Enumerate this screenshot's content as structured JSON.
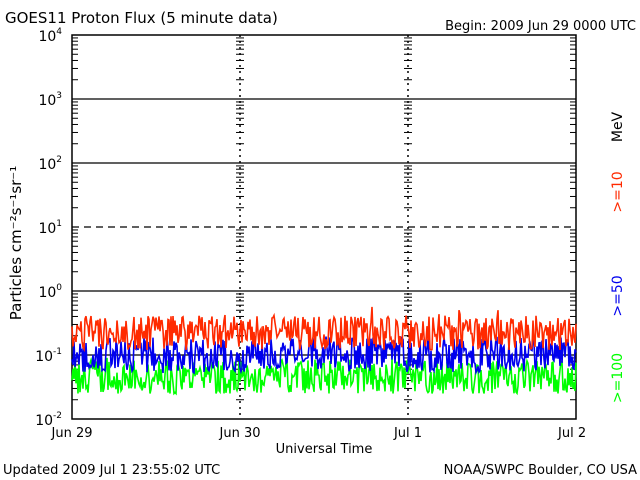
{
  "header": {
    "title": "GOES11 Proton Flux (5 minute data)",
    "begin": "Begin: 2009 Jun 29 0000 UTC"
  },
  "footer": {
    "updated": "Updated 2009 Jul  1 23:55:02 UTC",
    "credit": "NOAA/SWPC Boulder, CO USA"
  },
  "chart_data": {
    "type": "line",
    "title": "GOES11 Proton Flux (5 minute data)",
    "xlabel": "Universal Time",
    "ylabel": "Particles cm⁻²s⁻¹sr⁻¹",
    "yscale": "log",
    "ylim": [
      0.01,
      10000
    ],
    "yticks": [
      {
        "value": 10000,
        "base": "10",
        "exp": "4"
      },
      {
        "value": 1000,
        "base": "10",
        "exp": "3"
      },
      {
        "value": 100,
        "base": "10",
        "exp": "2"
      },
      {
        "value": 10,
        "base": "10",
        "exp": "1"
      },
      {
        "value": 1,
        "base": "10",
        "exp": "0"
      },
      {
        "value": 0.1,
        "base": "10",
        "exp": "-1"
      },
      {
        "value": 0.01,
        "base": "10",
        "exp": "-2"
      }
    ],
    "xlim": [
      "2009-06-29",
      "2009-07-02"
    ],
    "xticks": [
      "Jun 29",
      "Jun 30",
      "Jul 1",
      "Jul 2"
    ],
    "grid": true,
    "legend_position": "right, vertical",
    "legend_unit": "MeV",
    "series": [
      {
        "name": ">=10",
        "color": "#ff2a00",
        "baseline": 0.22,
        "min": 0.12,
        "max": 0.6
      },
      {
        "name": ">=50",
        "color": "#0000ee",
        "baseline": 0.1,
        "min": 0.05,
        "max": 0.2
      },
      {
        "name": ">=100",
        "color": "#00ff00",
        "baseline": 0.045,
        "min": 0.025,
        "max": 0.1
      }
    ]
  }
}
